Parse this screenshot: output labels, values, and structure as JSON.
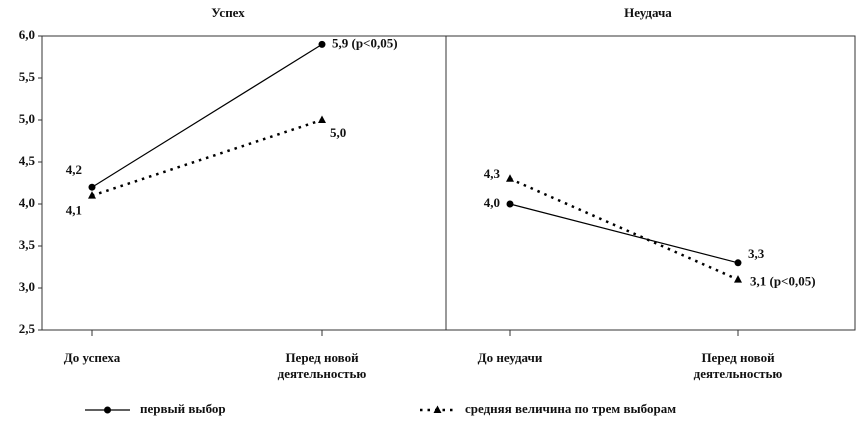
{
  "chart_data": [
    {
      "type": "line",
      "title": "Успех",
      "categories": [
        "До успеха",
        "Перед новой деятельностью"
      ],
      "series": [
        {
          "name": "первый выбор",
          "color": "#000000",
          "marker": "circle",
          "linestyle": "solid",
          "values": [
            4.2,
            5.9
          ],
          "value_labels": [
            "4,2",
            "5,9 (p<0,05)"
          ]
        },
        {
          "name": "средняя величина по трем выборам",
          "color": "#000000",
          "marker": "triangle",
          "linestyle": "dotted",
          "values": [
            4.1,
            5.0
          ],
          "value_labels": [
            "4,1",
            "5,0"
          ]
        }
      ],
      "ylim": [
        2.5,
        6.0
      ],
      "yticks": [
        {
          "value": 2.5,
          "label": "2,5"
        },
        {
          "value": 3.0,
          "label": "3,0"
        },
        {
          "value": 3.5,
          "label": "3,5"
        },
        {
          "value": 4.0,
          "label": "4,0"
        },
        {
          "value": 4.5,
          "label": "4,5"
        },
        {
          "value": 5.0,
          "label": "5,0"
        },
        {
          "value": 5.5,
          "label": "5,5"
        },
        {
          "value": 6.0,
          "label": "6,0"
        }
      ],
      "grid": false
    },
    {
      "type": "line",
      "title": "Неудача",
      "categories": [
        "До неудачи",
        "Перед новой деятельностью"
      ],
      "series": [
        {
          "name": "первый выбор",
          "color": "#000000",
          "marker": "circle",
          "linestyle": "solid",
          "values": [
            4.0,
            3.3
          ],
          "value_labels": [
            "4,0",
            "3,3"
          ]
        },
        {
          "name": "средняя величина по трем выборам",
          "color": "#000000",
          "marker": "triangle",
          "linestyle": "dotted",
          "values": [
            4.3,
            3.1
          ],
          "value_labels": [
            "4,3",
            "3,1 (p<0,05)"
          ]
        }
      ],
      "ylim": [
        2.5,
        6.0
      ],
      "grid": false
    }
  ]
}
